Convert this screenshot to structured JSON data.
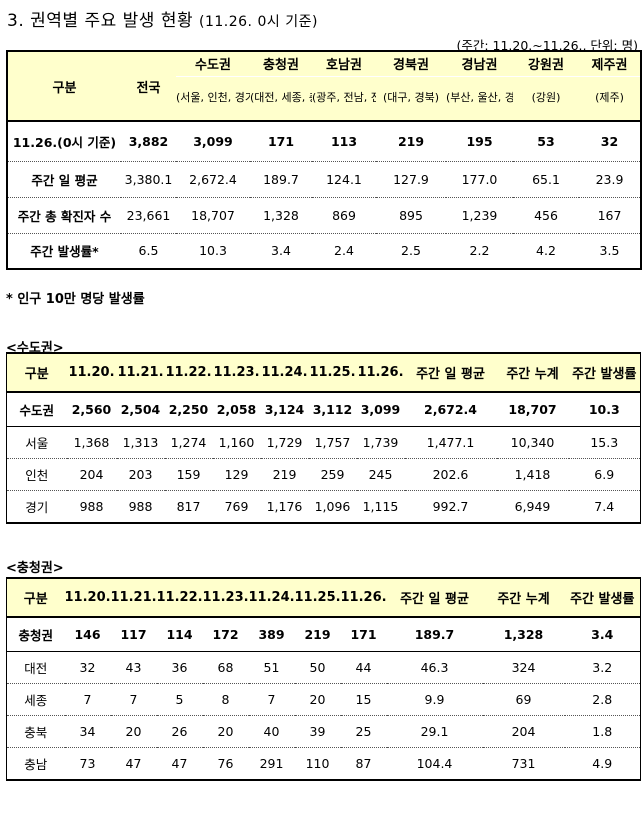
{
  "title": {
    "main": "3. 권역별 주요 발생 현황",
    "date": "(11.26. 0시 기준)"
  },
  "unit_note": "(주간: 11.20.~11.26., 단위: 명)",
  "regions_table": {
    "corner": "구분",
    "national": "전국",
    "regions": [
      {
        "name": "수도권",
        "detail": "(서울, 인천, 경기)"
      },
      {
        "name": "충청권",
        "detail": "(대전, 세종, 충남, 충북)"
      },
      {
        "name": "호남권",
        "detail": "(광주, 전남, 전북)"
      },
      {
        "name": "경북권",
        "detail": "(대구, 경북)"
      },
      {
        "name": "경남권",
        "detail": "(부산, 울산, 경남)"
      },
      {
        "name": "강원권",
        "detail": "(강원)"
      },
      {
        "name": "제주권",
        "detail": "(제주)"
      }
    ],
    "rows": [
      {
        "label": "11.26.(0시 기준)",
        "values": [
          "3,882",
          "3,099",
          "171",
          "113",
          "219",
          "195",
          "53",
          "32"
        ]
      },
      {
        "label": "주간 일 평균",
        "values": [
          "3,380.1",
          "2,672.4",
          "189.7",
          "124.1",
          "127.9",
          "177.0",
          "65.1",
          "23.9"
        ]
      },
      {
        "label": "주간 총 확진자 수",
        "values": [
          "23,661",
          "18,707",
          "1,328",
          "869",
          "895",
          "1,239",
          "456",
          "167"
        ]
      },
      {
        "label": "주간 발생률*",
        "values": [
          "6.5",
          "10.3",
          "3.4",
          "2.4",
          "2.5",
          "2.2",
          "4.2",
          "3.5"
        ]
      }
    ]
  },
  "footnote": "* 인구 10만 명당 발생률",
  "capital": {
    "section_label": "<수도권>",
    "headers": [
      "구분",
      "11.20.",
      "11.21.",
      "11.22.",
      "11.23.",
      "11.24.",
      "11.25.",
      "11.26.",
      "주간 일 평균",
      "주간 누계",
      "주간 발생률"
    ],
    "rows": [
      [
        "수도권",
        "2,560",
        "2,504",
        "2,250",
        "2,058",
        "3,124",
        "3,112",
        "3,099",
        "2,672.4",
        "18,707",
        "10.3"
      ],
      [
        "서울",
        "1,368",
        "1,313",
        "1,274",
        "1,160",
        "1,729",
        "1,757",
        "1,739",
        "1,477.1",
        "10,340",
        "15.3"
      ],
      [
        "인천",
        "204",
        "203",
        "159",
        "129",
        "219",
        "259",
        "245",
        "202.6",
        "1,418",
        "6.9"
      ],
      [
        "경기",
        "988",
        "988",
        "817",
        "769",
        "1,176",
        "1,096",
        "1,115",
        "992.7",
        "6,949",
        "7.4"
      ]
    ]
  },
  "chungcheong": {
    "section_label": "<충청권>",
    "headers": [
      "구분",
      "11.20.",
      "11.21.",
      "11.22.",
      "11.23.",
      "11.24.",
      "11.25.",
      "11.26.",
      "주간 일 평균",
      "주간 누계",
      "주간 발생률"
    ],
    "rows": [
      [
        "충청권",
        "146",
        "117",
        "114",
        "172",
        "389",
        "219",
        "171",
        "189.7",
        "1,328",
        "3.4"
      ],
      [
        "대전",
        "32",
        "43",
        "36",
        "68",
        "51",
        "50",
        "44",
        "46.3",
        "324",
        "3.2"
      ],
      [
        "세종",
        "7",
        "7",
        "5",
        "8",
        "7",
        "20",
        "15",
        "9.9",
        "69",
        "2.8"
      ],
      [
        "충북",
        "34",
        "20",
        "26",
        "20",
        "40",
        "39",
        "25",
        "29.1",
        "204",
        "1.8"
      ],
      [
        "충남",
        "73",
        "47",
        "47",
        "76",
        "291",
        "110",
        "87",
        "104.4",
        "731",
        "4.9"
      ]
    ]
  }
}
